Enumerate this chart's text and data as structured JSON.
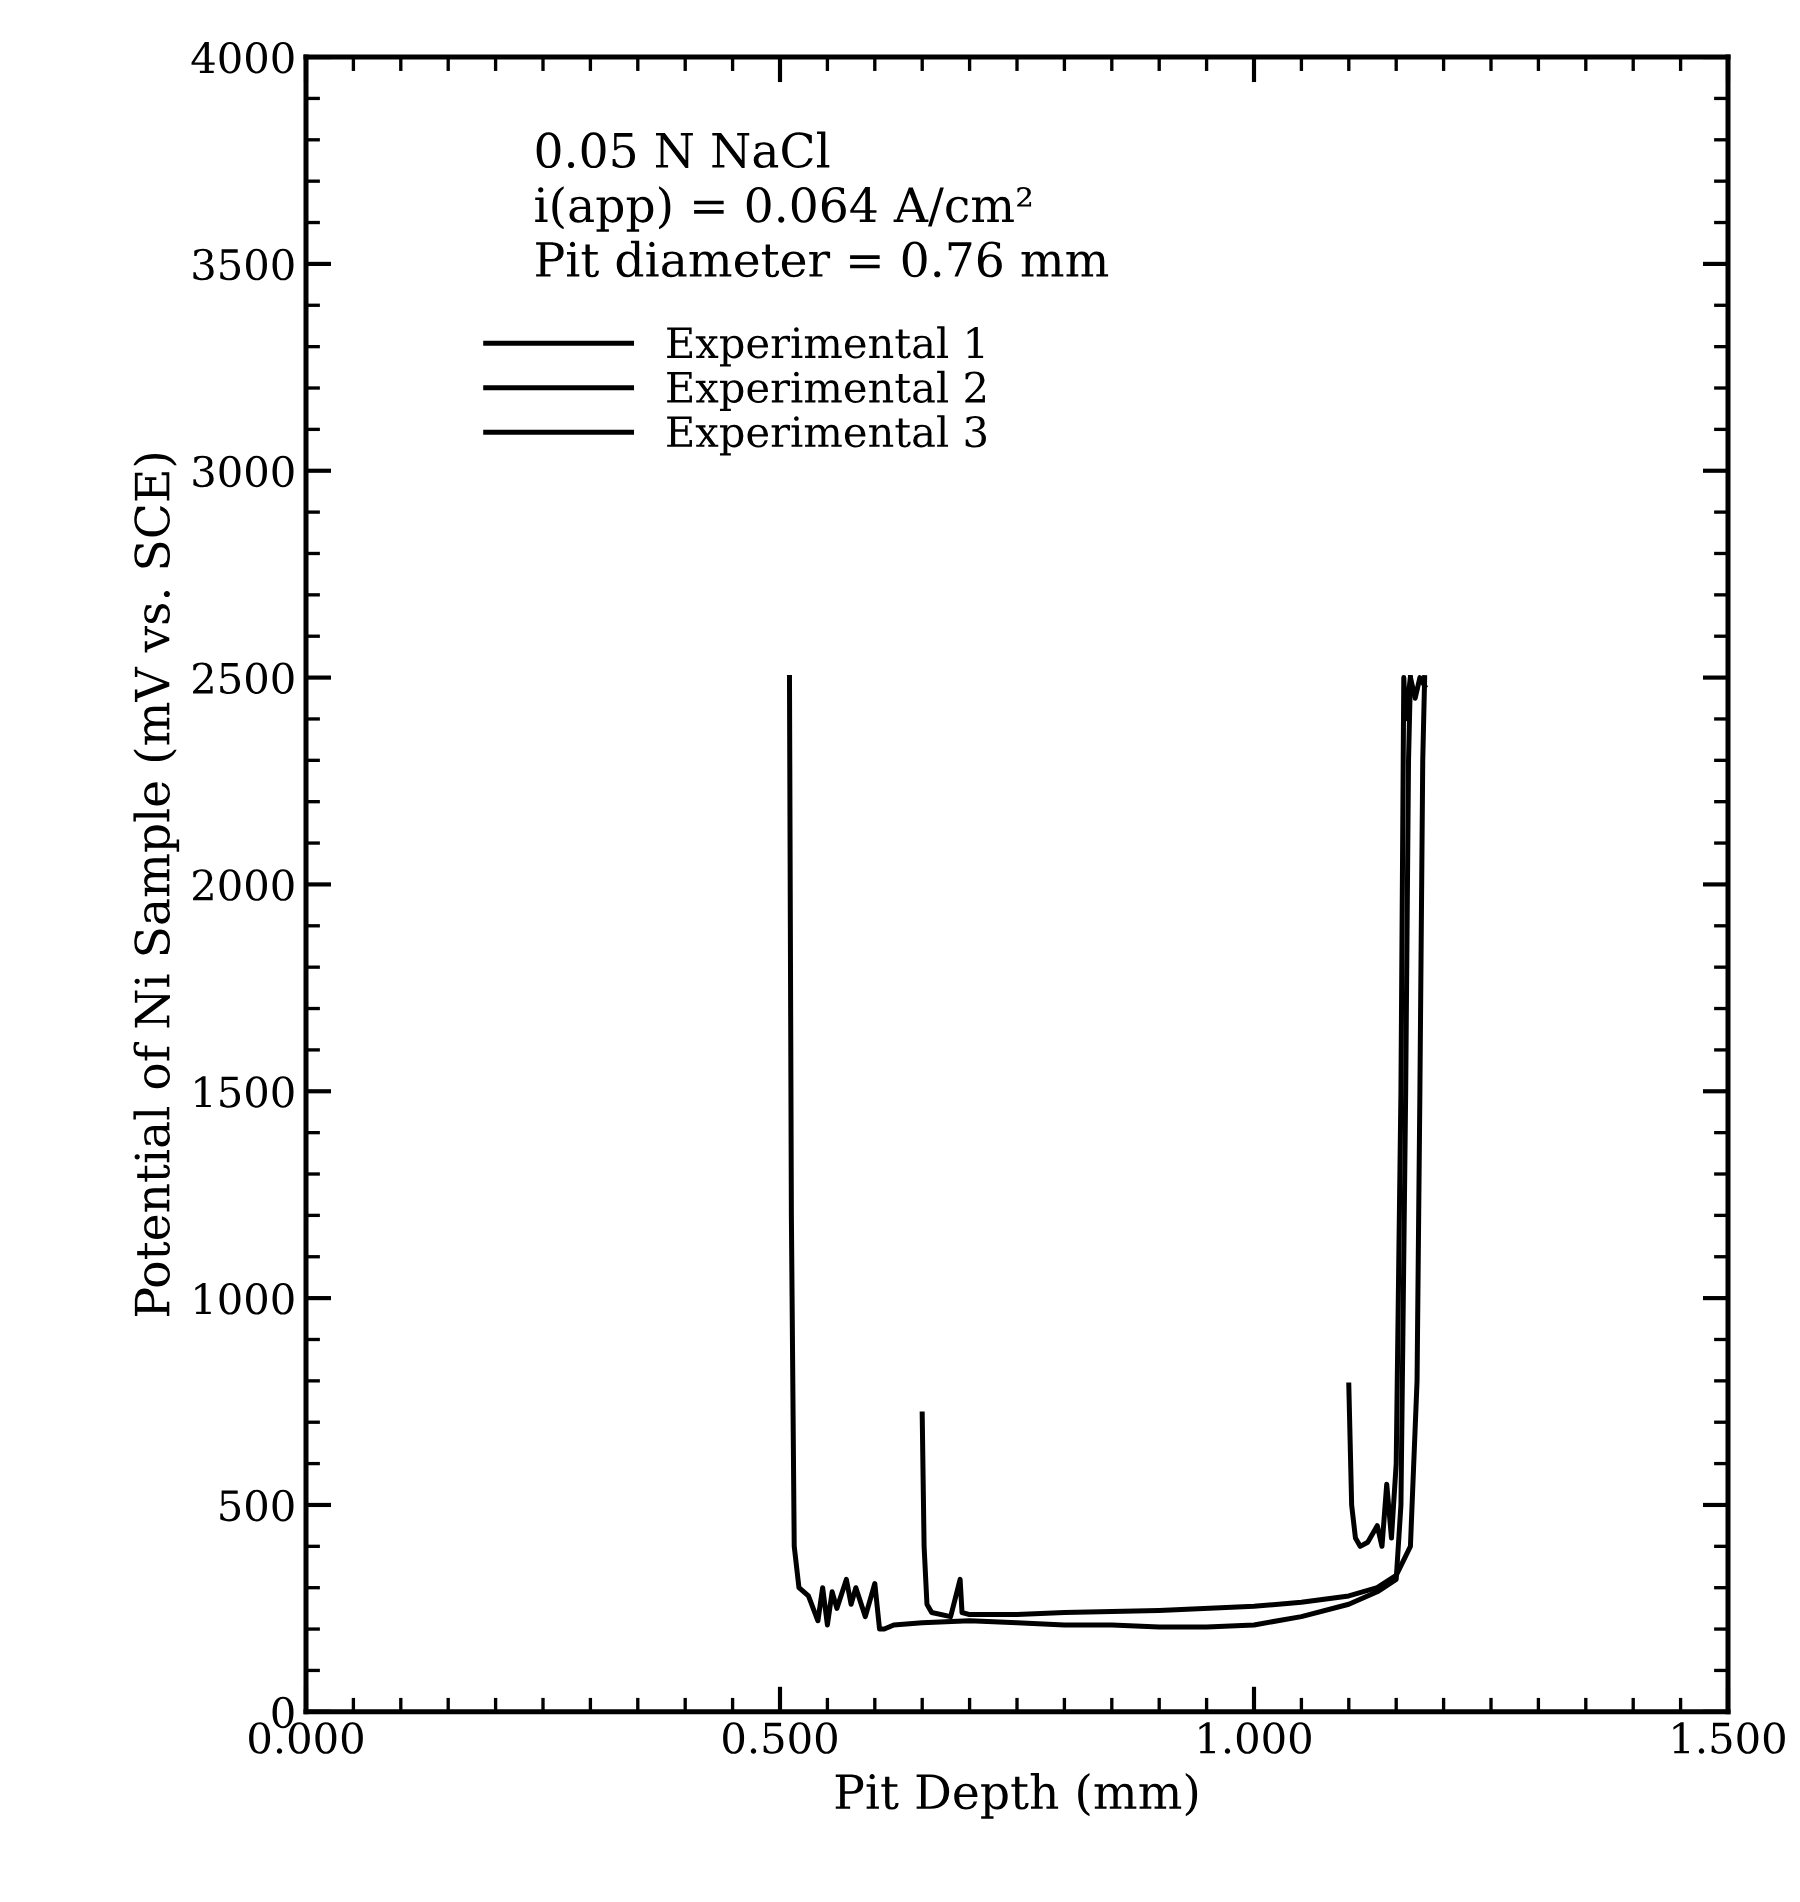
{
  "chart_data": {
    "type": "line",
    "xlabel": "Pit Depth (mm)",
    "ylabel": "Potential of Ni Sample (mV vs. SCE)",
    "annotations": [
      "0.05 N NaCl",
      "i(app) = 0.064 A/cm²",
      "Pit diameter = 0.76 mm"
    ],
    "xlim": [
      0,
      1.5
    ],
    "xticks": [
      {
        "value": 0,
        "label": "0.000"
      },
      {
        "value": 0.5,
        "label": "0.500"
      },
      {
        "value": 1.0,
        "label": "1.000"
      },
      {
        "value": 1.5,
        "label": "1.500"
      }
    ],
    "ylim": [
      0,
      4000
    ],
    "yticks": [
      0,
      500,
      1000,
      1500,
      2000,
      2500,
      3000,
      3500,
      4000
    ],
    "grid": false,
    "legend": "top left",
    "marker": "none",
    "line_style": "solid",
    "series": [
      {
        "name": "Experimental 1",
        "color": "#000000",
        "x": [
          0.51,
          0.512,
          0.515,
          0.52,
          0.53,
          0.54,
          0.545,
          0.55,
          0.555,
          0.56,
          0.57,
          0.575,
          0.58,
          0.59,
          0.6,
          0.605,
          0.61,
          0.62,
          0.65,
          0.7,
          0.75,
          0.8,
          0.85,
          0.9,
          0.95,
          1.0,
          1.05,
          1.1,
          1.13,
          1.15,
          1.155,
          1.16,
          1.163,
          1.165
        ],
        "values": [
          2500,
          1200,
          400,
          300,
          280,
          220,
          300,
          210,
          290,
          250,
          320,
          260,
          300,
          230,
          310,
          200,
          200,
          210,
          215,
          220,
          215,
          210,
          210,
          205,
          205,
          210,
          230,
          260,
          290,
          320,
          500,
          1500,
          2300,
          2500
        ]
      },
      {
        "name": "Experimental 2",
        "color": "#000000",
        "x": [
          0.65,
          0.652,
          0.655,
          0.66,
          0.68,
          0.69,
          0.692,
          0.7,
          0.75,
          0.8,
          0.9,
          1.0,
          1.05,
          1.1,
          1.13,
          1.15,
          1.165,
          1.172,
          1.175,
          1.178,
          1.18
        ],
        "values": [
          720,
          400,
          260,
          240,
          230,
          320,
          240,
          235,
          235,
          240,
          245,
          255,
          265,
          280,
          300,
          330,
          400,
          800,
          1500,
          2300,
          2500
        ]
      },
      {
        "name": "Experimental 3",
        "color": "#000000",
        "x": [
          1.1,
          1.103,
          1.107,
          1.112,
          1.12,
          1.13,
          1.135,
          1.14,
          1.145,
          1.15,
          1.155,
          1.158,
          1.16,
          1.165,
          1.17,
          1.175,
          1.18
        ],
        "values": [
          790,
          500,
          420,
          400,
          410,
          450,
          400,
          550,
          420,
          600,
          1500,
          2500,
          2400,
          2500,
          2450,
          2500,
          2480
        ]
      }
    ]
  }
}
